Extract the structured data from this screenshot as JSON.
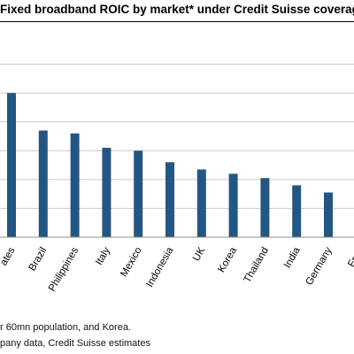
{
  "chart_data": {
    "type": "bar",
    "title": "Fixed broadband ROIC by market* under Credit Suisse coverag",
    "categories": [
      "ates",
      "Brazil",
      "Philippines",
      "Italy",
      "Mexico",
      "Indonesia",
      "UK",
      "Korea",
      "Thailand",
      "India",
      "Germany",
      "Fran"
    ],
    "series": [
      {
        "values": [
          5.0,
          3.7,
          3.6,
          3.1,
          3.0,
          2.6,
          2.35,
          2.2,
          2.05,
          1.8,
          1.55,
          0
        ]
      }
    ],
    "ylim": [
      0,
      7
    ],
    "grid": true,
    "xlabel": "",
    "ylabel": "",
    "bar_color": "#245684",
    "grid_color": "#c9c9c9",
    "axis_color": "#8c8c8c"
  },
  "footnotes": {
    "note1": "r 60mn population, and Korea.",
    "note2": "pany data, Credit Suisse estimates"
  }
}
